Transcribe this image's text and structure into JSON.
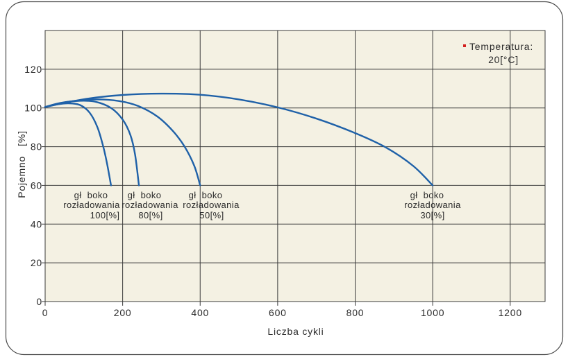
{
  "chart_data": {
    "type": "line",
    "xlabel": "Liczba cykli",
    "ylabel": "Pojemno   [%]",
    "xlim": [
      0,
      1290
    ],
    "ylim": [
      0,
      140
    ],
    "xticks": [
      0,
      200,
      400,
      600,
      800,
      1000,
      1200
    ],
    "yticks": [
      0,
      20,
      40,
      60,
      80,
      100,
      120
    ],
    "grid": true,
    "series": [
      {
        "label_lines": [
          "gł  boko",
          "rozładowania",
          "100[%]"
        ],
        "x": [
          0,
          30,
          60,
          90,
          115,
          135,
          150,
          160,
          170
        ],
        "y": [
          100.5,
          101.8,
          102.4,
          101.5,
          97.5,
          90,
          80,
          71,
          60
        ]
      },
      {
        "label_lines": [
          "gł  boko",
          "rozładowania",
          "80[%]"
        ],
        "x": [
          0,
          40,
          90,
          130,
          170,
          200,
          220,
          232,
          242
        ],
        "y": [
          100.5,
          102.6,
          103.7,
          103.2,
          100,
          94,
          86,
          76,
          60
        ]
      },
      {
        "label_lines": [
          "gł  boko",
          "rozładowania",
          "50[%]"
        ],
        "x": [
          0,
          60,
          130,
          190,
          240,
          290,
          330,
          360,
          385,
          400
        ],
        "y": [
          100.5,
          103.2,
          104.4,
          103.6,
          101,
          95.5,
          88,
          80,
          70,
          60
        ]
      },
      {
        "label_lines": [
          "gł  boko",
          "rozładowania",
          "30[%]"
        ],
        "x": [
          0,
          100,
          200,
          300,
          400,
          500,
          600,
          700,
          800,
          880,
          950,
          1000
        ],
        "y": [
          100.5,
          104.5,
          106.7,
          107.4,
          106.8,
          104.4,
          100.3,
          94.5,
          87,
          79.5,
          70,
          60
        ]
      }
    ],
    "note": {
      "lines": [
        "Temperatura:",
        "20[°C]"
      ]
    },
    "colors": {
      "line": "#1f61a8",
      "plot_bg": "#f4f1e3",
      "grid": "#3a3a3a",
      "marker": "#d3201f",
      "frame": "#4a4a4a"
    }
  }
}
